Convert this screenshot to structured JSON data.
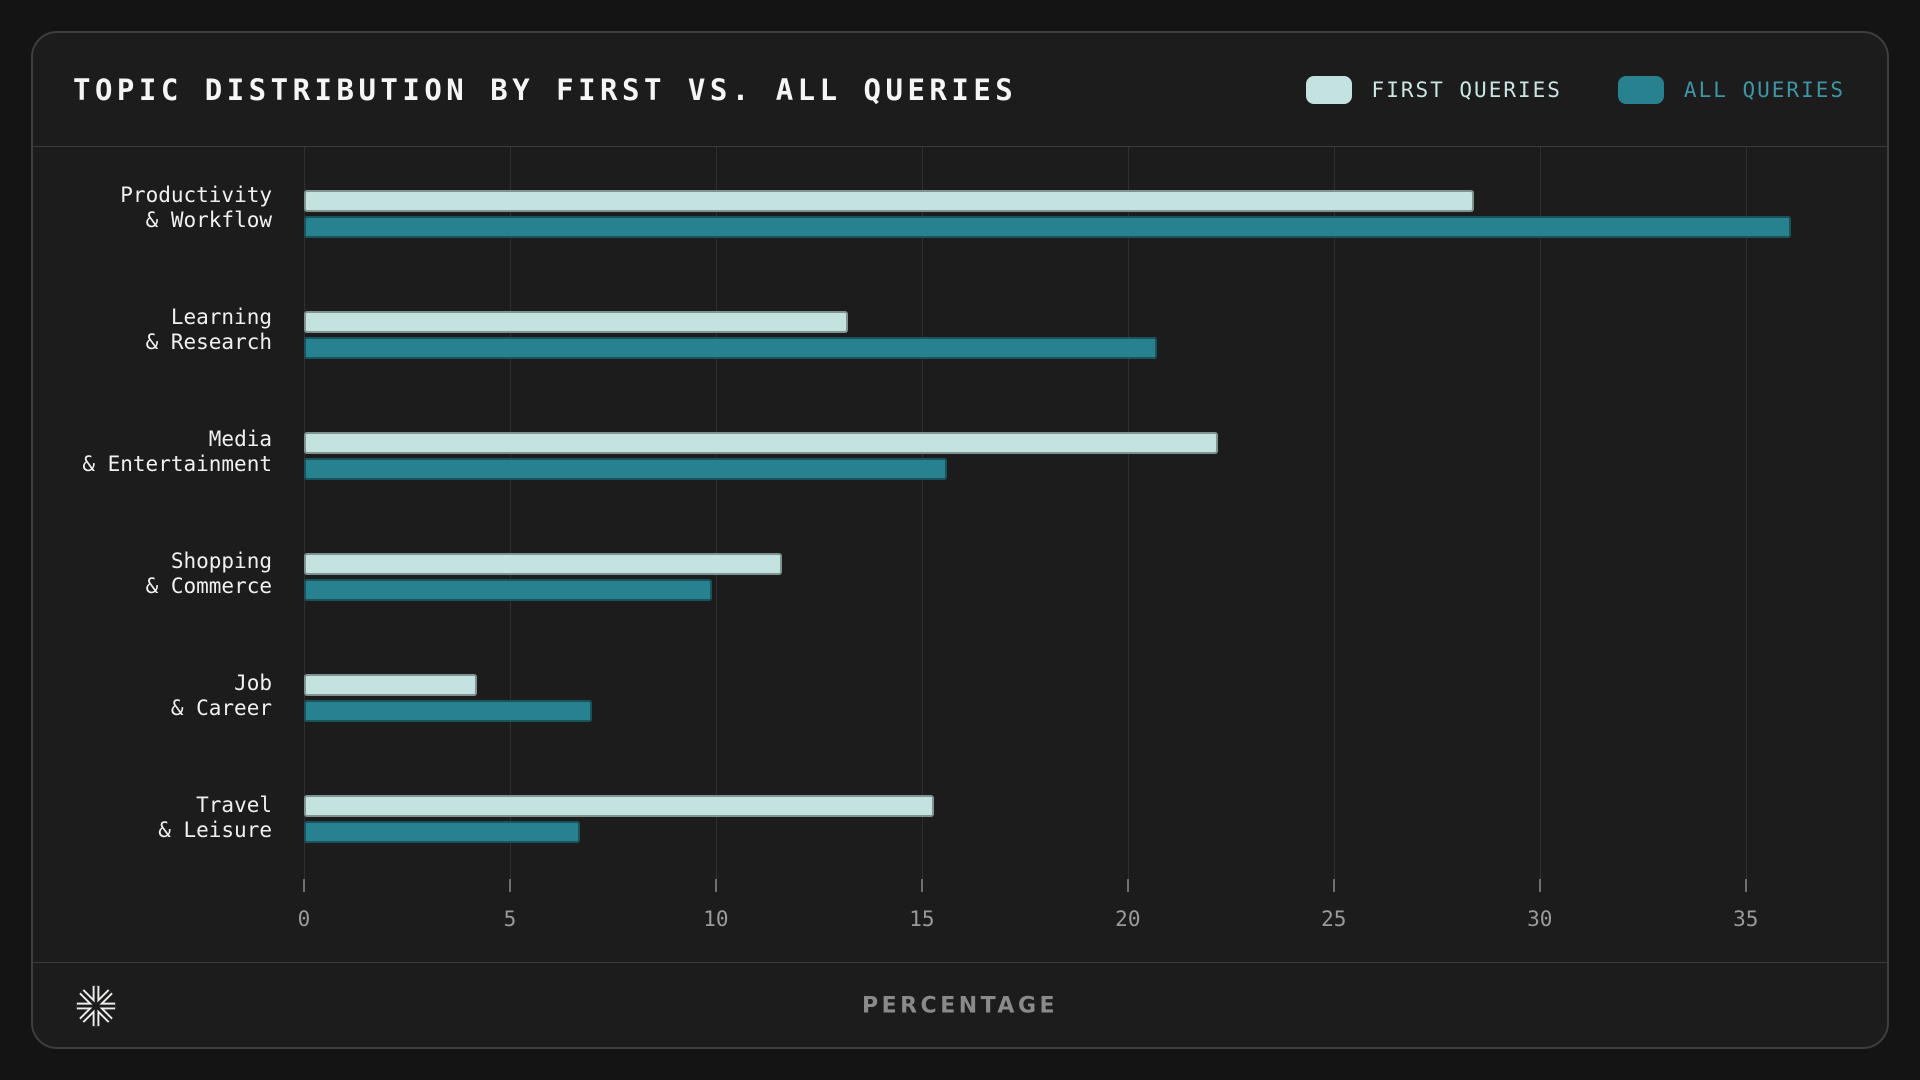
{
  "header": {
    "title": "TOPIC DISTRIBUTION BY FIRST VS. ALL QUERIES",
    "legend": [
      {
        "label": "FIRST QUERIES",
        "swatch_color": "#c3e2e0",
        "text_color": "#c9e6e4"
      },
      {
        "label": "ALL QUERIES",
        "swatch_color": "#27818f",
        "text_color": "#3e95a6"
      }
    ]
  },
  "chart_data": {
    "type": "bar",
    "orientation": "horizontal",
    "title": "TOPIC DISTRIBUTION BY FIRST VS. ALL QUERIES",
    "categories": [
      [
        "Productivity",
        "& Workflow"
      ],
      [
        "Learning",
        "& Research"
      ],
      [
        "Media",
        "& Entertainment"
      ],
      [
        "Shopping",
        "& Commerce"
      ],
      [
        "Job",
        "& Career"
      ],
      [
        "Travel",
        "& Leisure"
      ]
    ],
    "series": [
      {
        "name": "FIRST QUERIES",
        "color": "#c3e2e0",
        "values": [
          28.4,
          13.2,
          22.2,
          11.6,
          4.2,
          15.3
        ]
      },
      {
        "name": "ALL QUERIES",
        "color": "#27818f",
        "values": [
          36.1,
          20.7,
          15.6,
          9.9,
          7.0,
          6.7
        ]
      }
    ],
    "xlabel": "PERCENTAGE",
    "xticks": [
      0,
      5,
      10,
      15,
      20,
      25,
      30,
      35
    ],
    "xlim": [
      0,
      37.75
    ],
    "grid": true,
    "legend_position": "top-right"
  },
  "footer": {
    "axis_label": "PERCENTAGE",
    "logo": "starburst-logo"
  },
  "colors": {
    "page_background": "#141414",
    "card_background": "#1c1c1c",
    "card_border": "#3e3e3e",
    "divider": "#3a3a3a",
    "gridline": "#2f2f2f",
    "tick": "#6f6f6f",
    "tick_label": "#9a9a9a",
    "title_text": "#f5f5f5",
    "category_text": "#f0f0f0",
    "axis_label_text": "#8a8a8a"
  }
}
